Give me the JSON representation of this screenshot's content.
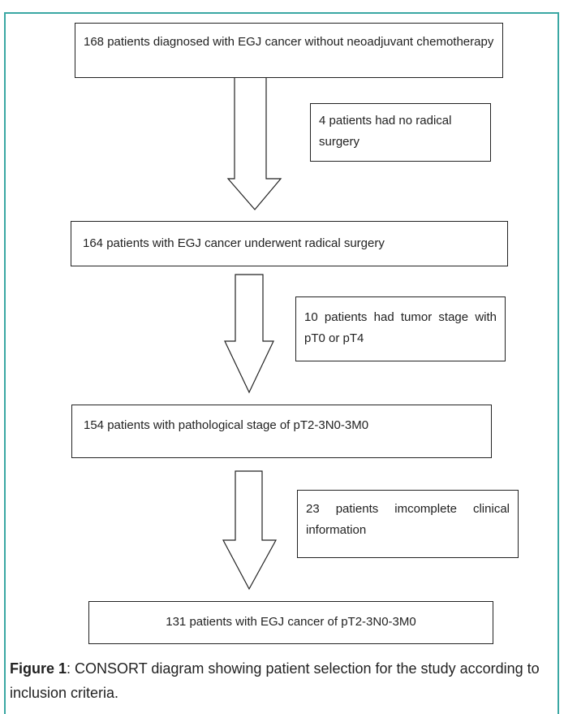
{
  "boxes": [
    {
      "text": "168 patients diagnosed with EGJ cancer without neoadjuvant chemotherapy"
    },
    {
      "text": "164 patients with EGJ cancer underwent radical surgery"
    },
    {
      "text": "154 patients with pathological stage of pT2-3N0-3M0"
    },
    {
      "text": "131 patients with EGJ cancer of pT2-3N0-3M0"
    }
  ],
  "exclusions": [
    {
      "text": "4 patients had no radical surgery"
    },
    {
      "text": "10 patients had tumor stage with pT0 or pT4"
    },
    {
      "text": "23 patients imcomplete clinical information"
    }
  ],
  "caption": {
    "label": "Figure 1",
    "text": ": CONSORT diagram showing patient selection for the study according to inclusion criteria."
  }
}
